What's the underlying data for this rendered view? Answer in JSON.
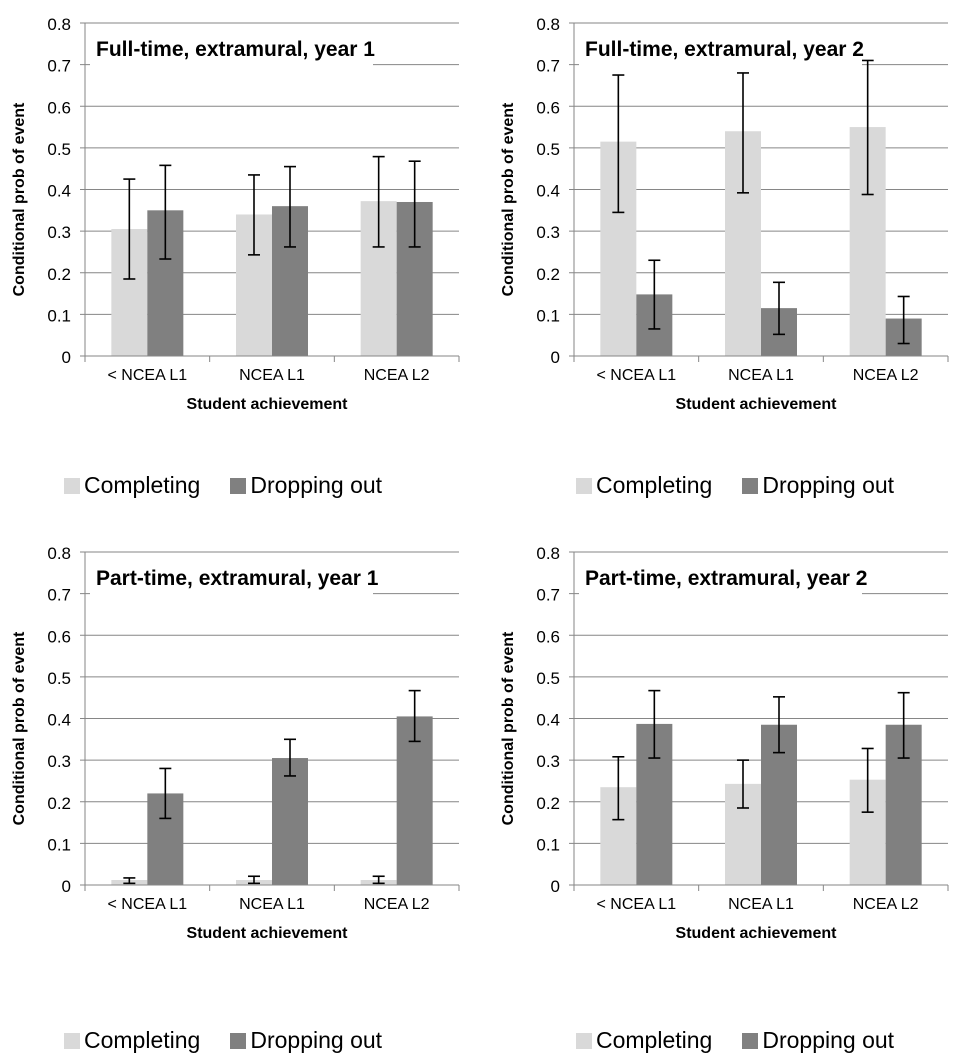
{
  "chart_data": [
    {
      "type": "bar",
      "title": "Full-time, extramural, year 1",
      "xlabel": "Student achievement",
      "ylabel": "Conditional prob of event",
      "ylim": [
        0,
        0.8
      ],
      "ytick_labels": [
        "0",
        "0.1",
        "0.2",
        "0.3",
        "0.4",
        "0.5",
        "0.6",
        "0.7",
        "0.8"
      ],
      "grid": true,
      "legend_position": "bottom",
      "categories": [
        "< NCEA L1",
        "NCEA L1",
        "NCEA L2"
      ],
      "series": [
        {
          "name": "Completing",
          "color": "#d9d9d9",
          "values": [
            0.305,
            0.34,
            0.372
          ],
          "error_low": [
            0.185,
            0.243,
            0.262
          ],
          "error_high": [
            0.425,
            0.435,
            0.479
          ]
        },
        {
          "name": "Dropping out",
          "color": "#808080",
          "values": [
            0.35,
            0.36,
            0.37
          ],
          "error_low": [
            0.233,
            0.262,
            0.262
          ],
          "error_high": [
            0.458,
            0.455,
            0.468
          ]
        }
      ]
    },
    {
      "type": "bar",
      "title": "Full-time, extramural, year 2",
      "xlabel": "Student achievement",
      "ylabel": "Conditional prob of event",
      "ylim": [
        0,
        0.8
      ],
      "ytick_labels": [
        "0",
        "0.1",
        "0.2",
        "0.3",
        "0.4",
        "0.5",
        "0.6",
        "0.7",
        "0.8"
      ],
      "grid": true,
      "legend_position": "bottom",
      "categories": [
        "< NCEA L1",
        "NCEA L1",
        "NCEA L2"
      ],
      "series": [
        {
          "name": "Completing",
          "color": "#d9d9d9",
          "values": [
            0.515,
            0.54,
            0.55
          ],
          "error_low": [
            0.345,
            0.392,
            0.388
          ],
          "error_high": [
            0.675,
            0.68,
            0.71
          ]
        },
        {
          "name": "Dropping out",
          "color": "#808080",
          "values": [
            0.148,
            0.115,
            0.09
          ],
          "error_low": [
            0.065,
            0.052,
            0.03
          ],
          "error_high": [
            0.23,
            0.177,
            0.143
          ]
        }
      ]
    },
    {
      "type": "bar",
      "title": "Part-time, extramural, year 1",
      "xlabel": "Student achievement",
      "ylabel": "Conditional prob of event",
      "ylim": [
        0,
        0.8
      ],
      "ytick_labels": [
        "0",
        "0.1",
        "0.2",
        "0.3",
        "0.4",
        "0.5",
        "0.6",
        "0.7",
        "0.8"
      ],
      "grid": true,
      "legend_position": "bottom",
      "categories": [
        "< NCEA L1",
        "NCEA L1",
        "NCEA L2"
      ],
      "series": [
        {
          "name": "Completing",
          "color": "#d9d9d9",
          "values": [
            0.012,
            0.012,
            0.012
          ],
          "error_low": [
            0.004,
            0.004,
            0.004
          ],
          "error_high": [
            0.017,
            0.021,
            0.021
          ]
        },
        {
          "name": "Dropping out",
          "color": "#808080",
          "values": [
            0.22,
            0.305,
            0.405
          ],
          "error_low": [
            0.16,
            0.262,
            0.345
          ],
          "error_high": [
            0.28,
            0.35,
            0.467
          ]
        }
      ]
    },
    {
      "type": "bar",
      "title": "Part-time, extramural, year 2",
      "xlabel": "Student achievement",
      "ylabel": "Conditional prob of event",
      "ylim": [
        0,
        0.8
      ],
      "ytick_labels": [
        "0",
        "0.1",
        "0.2",
        "0.3",
        "0.4",
        "0.5",
        "0.6",
        "0.7",
        "0.8"
      ],
      "grid": true,
      "legend_position": "bottom",
      "categories": [
        "< NCEA L1",
        "NCEA L1",
        "NCEA L2"
      ],
      "series": [
        {
          "name": "Completing",
          "color": "#d9d9d9",
          "values": [
            0.235,
            0.243,
            0.253
          ],
          "error_low": [
            0.157,
            0.185,
            0.175
          ],
          "error_high": [
            0.308,
            0.3,
            0.328
          ]
        },
        {
          "name": "Dropping out",
          "color": "#808080",
          "values": [
            0.387,
            0.385,
            0.385
          ],
          "error_low": [
            0.305,
            0.318,
            0.305
          ],
          "error_high": [
            0.467,
            0.452,
            0.462
          ]
        }
      ]
    }
  ]
}
